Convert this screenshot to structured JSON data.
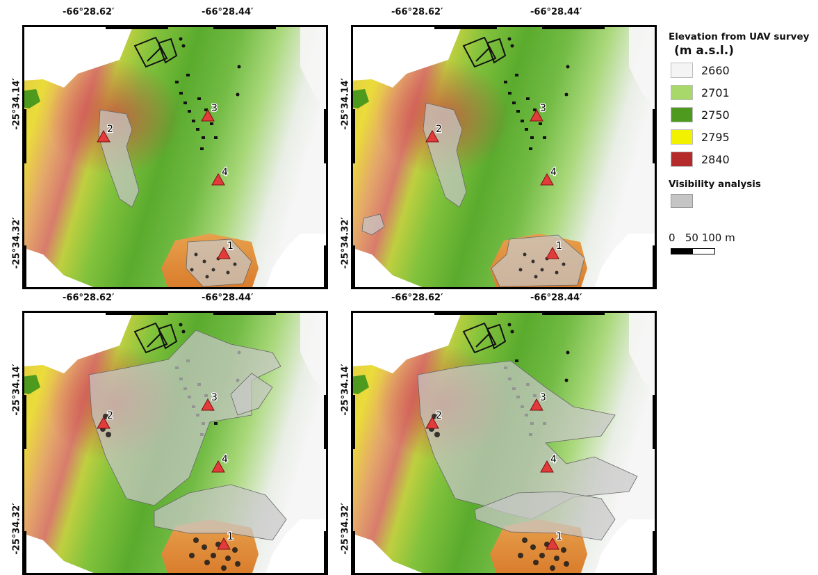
{
  "maps": [
    {
      "id": "top-left",
      "lon_labels": [
        "-66°28.62′",
        "-66°28.44′"
      ],
      "lat_labels": [
        "-25°34.14′",
        "-25°34.32′"
      ],
      "observation_points": [
        "1",
        "2",
        "3",
        "4"
      ]
    },
    {
      "id": "top-right",
      "lon_labels": [
        "-66°28.62′",
        "-66°28.44′"
      ],
      "lat_labels": [
        "-25°34.14′",
        "-25°34.32′"
      ],
      "observation_points": [
        "1",
        "2",
        "3",
        "4"
      ]
    },
    {
      "id": "bottom-left",
      "lon_labels": [
        "-66°28.62′",
        "-66°28.44′"
      ],
      "lat_labels": [
        "-25°34.14′",
        "-25°34.32′"
      ],
      "observation_points": [
        "1",
        "2",
        "3",
        "4"
      ]
    },
    {
      "id": "bottom-right",
      "lon_labels": [
        "-66°28.62′",
        "-66°28.44′"
      ],
      "lat_labels": [
        "-25°34.14′",
        "-25°34.32′"
      ],
      "observation_points": [
        "1",
        "2",
        "3",
        "4"
      ]
    }
  ],
  "legend": {
    "title": "Elevation from UAV survey",
    "units": "(m a.s.l.)",
    "elevation_classes": [
      {
        "label": "2660",
        "color": "#f4f4f4"
      },
      {
        "label": "2701",
        "color": "#a8d86a"
      },
      {
        "label": "2750",
        "color": "#4e9a1e"
      },
      {
        "label": "2795",
        "color": "#f2f200"
      },
      {
        "label": "2840",
        "color": "#b52b2b"
      }
    ],
    "visibility_title": "Visibility analysis",
    "visibility_color": "#c5c5c5",
    "scale_labels": "0   50 100 m"
  }
}
